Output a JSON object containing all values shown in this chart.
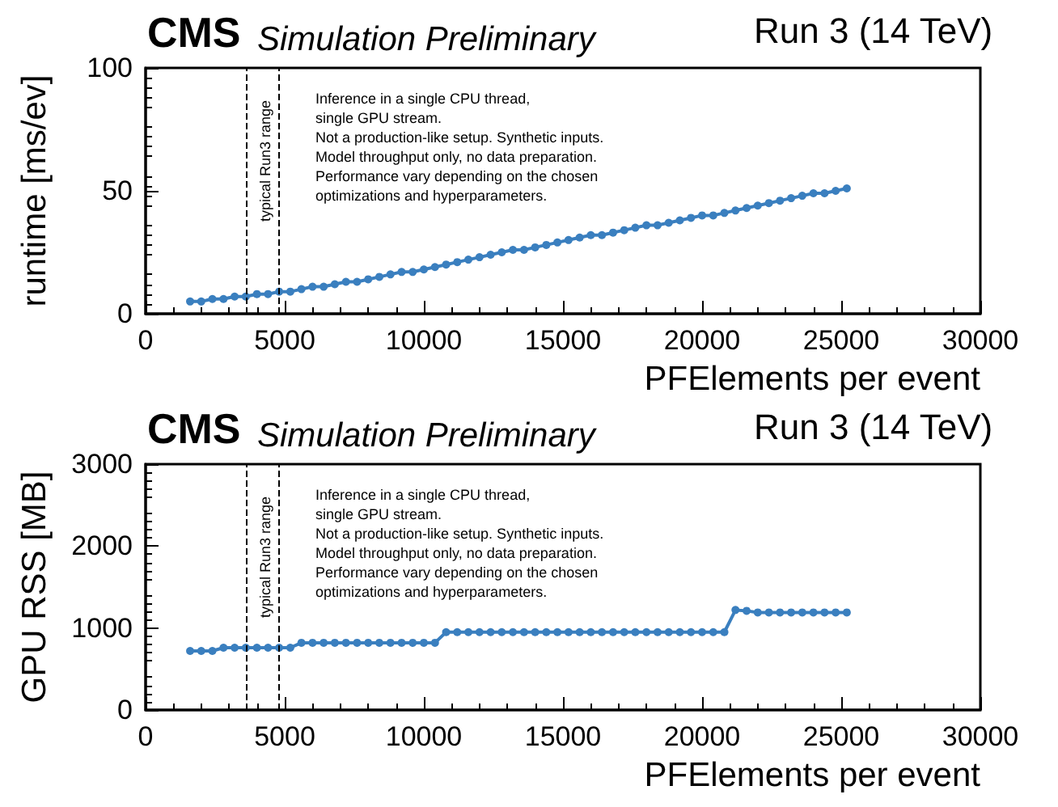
{
  "chart_data": [
    {
      "type": "line",
      "title": "CMS",
      "subtitle": "Simulation Preliminary",
      "xlabel": "PFElements per event",
      "ylabel": "runtime [ms/ev]",
      "annotations": [
        "Run 3 (14 TeV)",
        "Inference in a single CPU thread,\nsingle GPU stream.\nNot a production-like setup. Synthetic inputs.\nModel throughput only, no data preparation.\nPerformance vary depending on the chosen\noptimizations and hyperparameters."
      ],
      "x": [
        1600,
        2000,
        2400,
        2800,
        3200,
        3600,
        4000,
        4400,
        4800,
        5200,
        5600,
        6000,
        6400,
        6800,
        7200,
        7600,
        8000,
        8400,
        8800,
        9200,
        9600,
        10000,
        10400,
        10800,
        11200,
        11600,
        12000,
        12400,
        12800,
        13200,
        13600,
        14000,
        14400,
        14800,
        15200,
        15600,
        16000,
        16400,
        16800,
        17200,
        17600,
        18000,
        18400,
        18800,
        19200,
        19600,
        20000,
        20400,
        20800,
        21200,
        21600,
        22000,
        22400,
        22800,
        23200,
        23600,
        24000,
        24400,
        24800,
        25200
      ],
      "series": [
        {
          "color": "#3a7fbf",
          "values": [
            5,
            5,
            6,
            6,
            7,
            7,
            8,
            8,
            9,
            9,
            10,
            11,
            11,
            12,
            13,
            13,
            14,
            15,
            16,
            17,
            17,
            18,
            19,
            20,
            21,
            22,
            23,
            24,
            25,
            26,
            26,
            27,
            28,
            29,
            30,
            31,
            32,
            32,
            33,
            34,
            35,
            36,
            36,
            37,
            38,
            39,
            40,
            40,
            41,
            42,
            43,
            44,
            45,
            46,
            47,
            48,
            49,
            49,
            50,
            51
          ]
        }
      ],
      "xlim": [
        0,
        30000
      ],
      "xticks": [
        0,
        5000,
        10000,
        15000,
        20000,
        25000,
        30000
      ],
      "ylim": [
        0,
        100
      ],
      "yticks": [
        0,
        50,
        100
      ],
      "ref_lines": [
        {
          "axis": "x",
          "value": 3600,
          "label": null,
          "line_style": "dashed",
          "color": "#000000"
        },
        {
          "axis": "x",
          "value": 4800,
          "label": "typical Run3 range",
          "line_style": "dashed",
          "color": "#000000"
        }
      ],
      "grid": false,
      "marker": "circle",
      "line_style": "solid"
    },
    {
      "type": "line",
      "title": "CMS",
      "subtitle": "Simulation Preliminary",
      "xlabel": "PFElements per event",
      "ylabel": "GPU RSS [MB]",
      "annotations": [
        "Run 3 (14 TeV)",
        "Inference in a single CPU thread,\nsingle GPU stream.\nNot a production-like setup. Synthetic inputs.\nModel throughput only, no data preparation.\nPerformance vary depending on the chosen\noptimizations and hyperparameters."
      ],
      "x": [
        1600,
        2000,
        2400,
        2800,
        3200,
        3600,
        4000,
        4400,
        4800,
        5200,
        5600,
        6000,
        6400,
        6800,
        7200,
        7600,
        8000,
        8400,
        8800,
        9200,
        9600,
        10000,
        10400,
        10800,
        11200,
        11600,
        12000,
        12400,
        12800,
        13200,
        13600,
        14000,
        14400,
        14800,
        15200,
        15600,
        16000,
        16400,
        16800,
        17200,
        17600,
        18000,
        18400,
        18800,
        19200,
        19600,
        20000,
        20400,
        20800,
        21200,
        21600,
        22000,
        22400,
        22800,
        23200,
        23600,
        24000,
        24400,
        24800,
        25200
      ],
      "series": [
        {
          "color": "#3a7fbf",
          "values": [
            720,
            720,
            720,
            760,
            760,
            760,
            760,
            760,
            760,
            760,
            820,
            820,
            820,
            820,
            820,
            820,
            820,
            820,
            820,
            820,
            820,
            820,
            820,
            950,
            950,
            950,
            950,
            950,
            950,
            950,
            950,
            950,
            950,
            950,
            950,
            950,
            950,
            950,
            950,
            950,
            950,
            950,
            950,
            950,
            950,
            950,
            950,
            950,
            950,
            1220,
            1210,
            1190,
            1190,
            1190,
            1190,
            1190,
            1190,
            1190,
            1190,
            1190
          ]
        }
      ],
      "xlim": [
        0,
        30000
      ],
      "xticks": [
        0,
        5000,
        10000,
        15000,
        20000,
        25000,
        30000
      ],
      "ylim": [
        0,
        3000
      ],
      "yticks": [
        0,
        1000,
        2000,
        3000
      ],
      "ref_lines": [
        {
          "axis": "x",
          "value": 3600,
          "label": null,
          "line_style": "dashed",
          "color": "#000000"
        },
        {
          "axis": "x",
          "value": 4800,
          "label": "typical Run3 range",
          "line_style": "dashed",
          "color": "#000000"
        }
      ],
      "grid": false,
      "marker": "circle",
      "line_style": "solid"
    }
  ]
}
